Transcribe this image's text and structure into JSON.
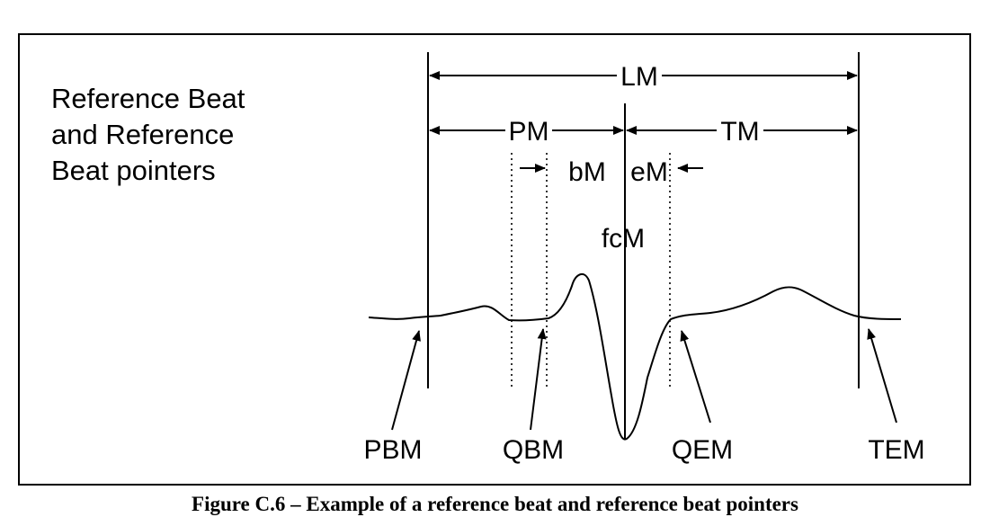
{
  "description_lines": [
    "Reference Beat",
    "and Reference",
    "Beat pointers"
  ],
  "labels": {
    "lm": "LM",
    "pm": "PM",
    "tm": "TM",
    "bm": "bM",
    "em": "eM",
    "fcm": "fcM",
    "pbm": "PBM",
    "qbm": "QBM",
    "qem": "QEM",
    "tem": "TEM"
  },
  "caption": "Figure C.6 – Example of a reference beat and reference beat pointers"
}
